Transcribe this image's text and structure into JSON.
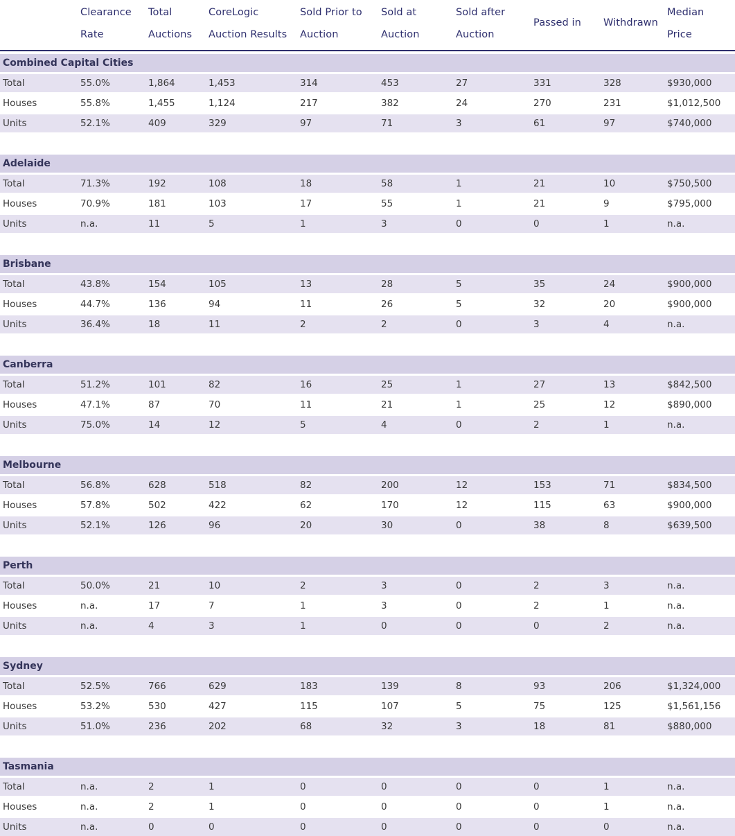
{
  "headers": [
    [
      "",
      ""
    ],
    [
      "Clearance",
      "Rate"
    ],
    [
      "Total",
      "Auctions"
    ],
    [
      "CoreLogic",
      "Auction Results"
    ],
    [
      "Sold Prior to",
      "Auction"
    ],
    [
      "Sold at",
      "Auction"
    ],
    [
      "Sold after",
      "Auction"
    ],
    [
      "Passed in"
    ],
    [
      "Withdrawn"
    ],
    [
      "Median",
      "Price"
    ]
  ],
  "sections": [
    {
      "title": "Combined Capital Cities",
      "rows": [
        [
          "Total",
          "55.0%",
          "1,864",
          "1,453",
          "314",
          "453",
          "27",
          "331",
          "328",
          "$930,000"
        ],
        [
          "Houses",
          "55.8%",
          "1,455",
          "1,124",
          "217",
          "382",
          "24",
          "270",
          "231",
          "$1,012,500"
        ],
        [
          "Units",
          "52.1%",
          "409",
          "329",
          "97",
          "71",
          "3",
          "61",
          "97",
          "$740,000"
        ]
      ]
    },
    {
      "title": "Adelaide",
      "rows": [
        [
          "Total",
          "71.3%",
          "192",
          "108",
          "18",
          "58",
          "1",
          "21",
          "10",
          "$750,500"
        ],
        [
          "Houses",
          "70.9%",
          "181",
          "103",
          "17",
          "55",
          "1",
          "21",
          "9",
          "$795,000"
        ],
        [
          "Units",
          "n.a.",
          "11",
          "5",
          "1",
          "3",
          "0",
          "0",
          "1",
          "n.a."
        ]
      ]
    },
    {
      "title": "Brisbane",
      "rows": [
        [
          "Total",
          "43.8%",
          "154",
          "105",
          "13",
          "28",
          "5",
          "35",
          "24",
          "$900,000"
        ],
        [
          "Houses",
          "44.7%",
          "136",
          "94",
          "11",
          "26",
          "5",
          "32",
          "20",
          "$900,000"
        ],
        [
          "Units",
          "36.4%",
          "18",
          "11",
          "2",
          "2",
          "0",
          "3",
          "4",
          "n.a."
        ]
      ]
    },
    {
      "title": "Canberra",
      "rows": [
        [
          "Total",
          "51.2%",
          "101",
          "82",
          "16",
          "25",
          "1",
          "27",
          "13",
          "$842,500"
        ],
        [
          "Houses",
          "47.1%",
          "87",
          "70",
          "11",
          "21",
          "1",
          "25",
          "12",
          "$890,000"
        ],
        [
          "Units",
          "75.0%",
          "14",
          "12",
          "5",
          "4",
          "0",
          "2",
          "1",
          "n.a."
        ]
      ]
    },
    {
      "title": "Melbourne",
      "rows": [
        [
          "Total",
          "56.8%",
          "628",
          "518",
          "82",
          "200",
          "12",
          "153",
          "71",
          "$834,500"
        ],
        [
          "Houses",
          "57.8%",
          "502",
          "422",
          "62",
          "170",
          "12",
          "115",
          "63",
          "$900,000"
        ],
        [
          "Units",
          "52.1%",
          "126",
          "96",
          "20",
          "30",
          "0",
          "38",
          "8",
          "$639,500"
        ]
      ]
    },
    {
      "title": "Perth",
      "rows": [
        [
          "Total",
          "50.0%",
          "21",
          "10",
          "2",
          "3",
          "0",
          "2",
          "3",
          "n.a."
        ],
        [
          "Houses",
          "n.a.",
          "17",
          "7",
          "1",
          "3",
          "0",
          "2",
          "1",
          "n.a."
        ],
        [
          "Units",
          "n.a.",
          "4",
          "3",
          "1",
          "0",
          "0",
          "0",
          "2",
          "n.a."
        ]
      ]
    },
    {
      "title": "Sydney",
      "rows": [
        [
          "Total",
          "52.5%",
          "766",
          "629",
          "183",
          "139",
          "8",
          "93",
          "206",
          "$1,324,000"
        ],
        [
          "Houses",
          "53.2%",
          "530",
          "427",
          "115",
          "107",
          "5",
          "75",
          "125",
          "$1,561,156"
        ],
        [
          "Units",
          "51.0%",
          "236",
          "202",
          "68",
          "32",
          "3",
          "18",
          "81",
          "$880,000"
        ]
      ]
    },
    {
      "title": "Tasmania",
      "rows": [
        [
          "Total",
          "n.a.",
          "2",
          "1",
          "0",
          "0",
          "0",
          "0",
          "1",
          "n.a."
        ],
        [
          "Houses",
          "n.a.",
          "2",
          "1",
          "0",
          "0",
          "0",
          "0",
          "1",
          "n.a."
        ],
        [
          "Units",
          "n.a.",
          "0",
          "0",
          "0",
          "0",
          "0",
          "0",
          "0",
          "n.a."
        ]
      ]
    }
  ]
}
